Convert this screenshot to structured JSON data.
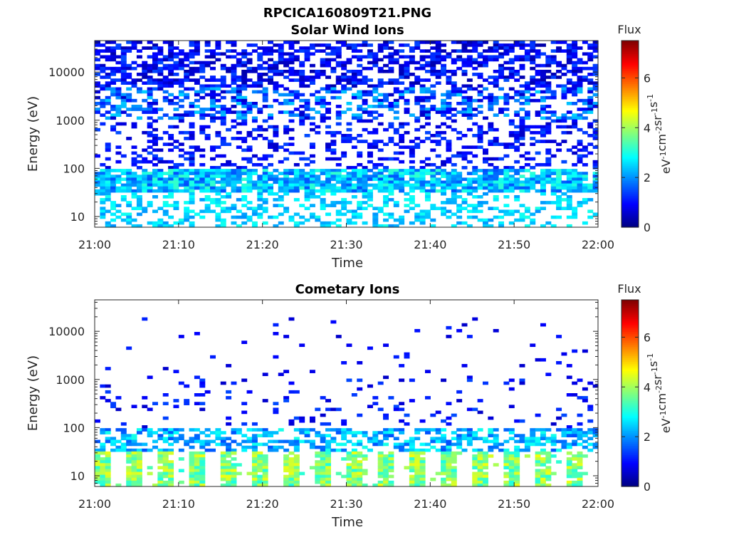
{
  "figure": {
    "title": "RPCICA160809T21.PNG"
  },
  "chart_data": [
    {
      "type": "heatmap",
      "title": "Solar Wind Ions",
      "xlabel": "Time",
      "ylabel": "Energy (eV)",
      "x_ticks": [
        "21:00",
        "21:10",
        "21:20",
        "21:30",
        "21:40",
        "21:50",
        "22:00"
      ],
      "xlim": [
        "21:00",
        "22:00"
      ],
      "y_scale": "log",
      "y_ticks": [
        10,
        100,
        1000,
        10000
      ],
      "y_tick_labels": [
        "10",
        "100",
        "1000",
        "10000"
      ],
      "ylim": [
        6,
        45000
      ],
      "colorbar": {
        "label": "Flux",
        "units": "eV-1 cm-2 sr-1 s-1",
        "range": [
          0,
          7.5
        ],
        "ticks": [
          "0",
          "2",
          "4",
          "6"
        ],
        "colormap": "jet"
      },
      "summary": [
        {
          "energy_range_eV": [
            5000,
            45000
          ],
          "flux_range": [
            0.3,
            1.5
          ]
        },
        {
          "energy_range_eV": [
            1000,
            5000
          ],
          "flux_range": [
            0.5,
            2.5
          ]
        },
        {
          "energy_range_eV": [
            100,
            1000
          ],
          "flux_range": [
            0.5,
            1.5
          ]
        },
        {
          "energy_range_eV": [
            30,
            100
          ],
          "flux_range": [
            1.5,
            3.2
          ]
        },
        {
          "energy_range_eV": [
            6,
            30
          ],
          "flux_range": [
            2.0,
            3.0
          ]
        }
      ]
    },
    {
      "type": "heatmap",
      "title": "Cometary Ions",
      "xlabel": "Time",
      "ylabel": "Energy (eV)",
      "x_ticks": [
        "21:00",
        "21:10",
        "21:20",
        "21:30",
        "21:40",
        "21:50",
        "22:00"
      ],
      "xlim": [
        "21:00",
        "22:00"
      ],
      "y_scale": "log",
      "y_ticks": [
        10,
        100,
        1000,
        10000
      ],
      "y_tick_labels": [
        "10",
        "100",
        "1000",
        "10000"
      ],
      "ylim": [
        6,
        45000
      ],
      "colorbar": {
        "label": "Flux",
        "units": "eV-1 cm-2 sr-1 s-1",
        "range": [
          0,
          7.5
        ],
        "ticks": [
          "0",
          "2",
          "4",
          "6"
        ],
        "colormap": "jet"
      },
      "summary": [
        {
          "energy_range_eV": [
            1000,
            20000
          ],
          "flux_range": [
            0.5,
            1.2
          ]
        },
        {
          "energy_range_eV": [
            100,
            1000
          ],
          "flux_range": [
            0.5,
            1.5
          ]
        },
        {
          "energy_range_eV": [
            30,
            100
          ],
          "flux_range": [
            1.5,
            3.0
          ]
        },
        {
          "energy_range_eV": [
            6,
            30
          ],
          "flux_range": [
            3.0,
            4.6
          ]
        }
      ]
    }
  ]
}
